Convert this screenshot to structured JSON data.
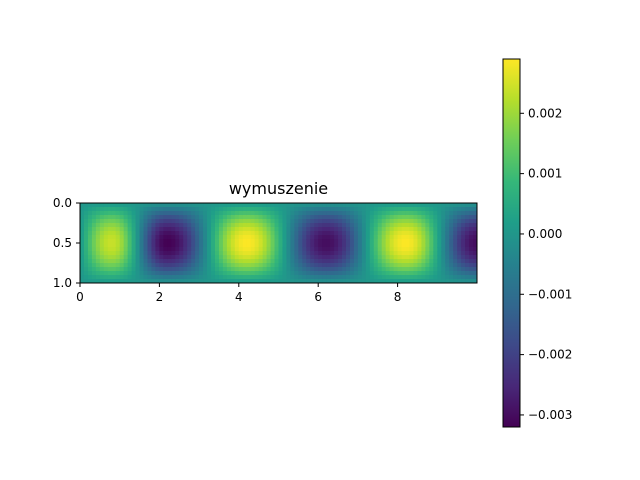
{
  "chart_data": {
    "type": "heatmap",
    "title": "wymuszenie",
    "xlabel": "",
    "ylabel": "",
    "colormap": "viridis",
    "xlim": [
      0,
      10
    ],
    "ylim": [
      1.0,
      0.0
    ],
    "y_axis_inverted": true,
    "x_ticks": [
      "0",
      "2",
      "4",
      "6",
      "8"
    ],
    "x_tick_values": [
      0,
      2,
      4,
      6,
      8
    ],
    "y_ticks": [
      "0.0",
      "0.5",
      "1.0"
    ],
    "y_tick_values": [
      0.0,
      0.5,
      1.0
    ],
    "colorbar": {
      "range": [
        -0.0032,
        0.0029
      ],
      "ticks": [
        "0.002",
        "0.001",
        "0.000",
        "−0.001",
        "−0.002",
        "−0.003"
      ],
      "tick_values": [
        0.002,
        0.001,
        0.0,
        -0.001,
        -0.002,
        -0.003
      ],
      "colors": [
        "#440154",
        "#482878",
        "#3e4989",
        "#31688e",
        "#26828e",
        "#1f9e89",
        "#35b779",
        "#6ece58",
        "#b5de2b",
        "#fde725"
      ]
    },
    "features": [
      {
        "kind": "max",
        "x": 0.8,
        "y": 0.5,
        "value": 0.0024
      },
      {
        "kind": "min",
        "x": 2.2,
        "y": 0.5,
        "value": -0.0032
      },
      {
        "kind": "max",
        "x": 4.2,
        "y": 0.5,
        "value": 0.0029
      },
      {
        "kind": "min",
        "x": 6.2,
        "y": 0.5,
        "value": -0.003
      },
      {
        "kind": "max",
        "x": 8.2,
        "y": 0.5,
        "value": 0.0029
      },
      {
        "kind": "min",
        "x": 10.0,
        "y": 0.5,
        "value": -0.003
      }
    ]
  }
}
